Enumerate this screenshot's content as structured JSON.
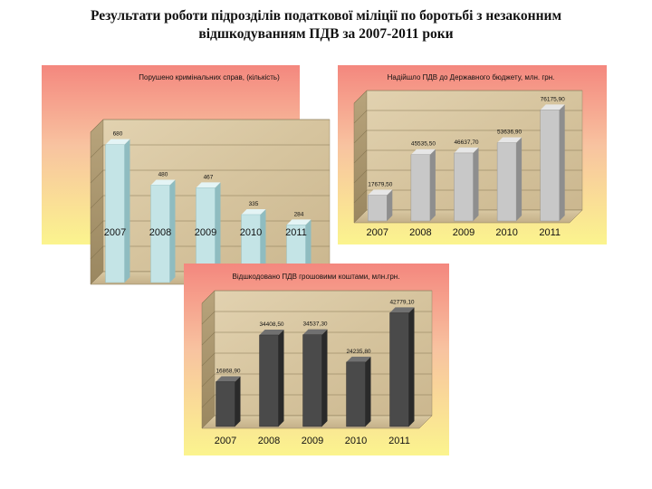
{
  "slide": {
    "title_line1": "Результати роботи підрозділів податкової міліції по боротьбі з незаконним",
    "title_line2": "відшкодуванням ПДВ за 2007-2011 роки"
  },
  "chart_data": [
    {
      "type": "bar",
      "title": "Порушено кримінальних справ, (кількість)",
      "categories": [
        "2007",
        "2008",
        "2009",
        "2010",
        "2011"
      ],
      "values": [
        680,
        480,
        467,
        335,
        284
      ],
      "value_labels": [
        "680",
        "480",
        "467",
        "335",
        "284"
      ],
      "ylim": [
        0,
        750
      ],
      "bar_color": "#c4e4e6",
      "bar_side_color": "#8fbcc0",
      "bar_top_color": "#e4f4f5"
    },
    {
      "type": "bar",
      "title": "Надійшло ПДВ до Державного бюджету, млн. грн.",
      "categories": [
        "2007",
        "2008",
        "2009",
        "2010",
        "2011"
      ],
      "values": [
        17679.5,
        45535.5,
        46637.7,
        53636.9,
        76175.9
      ],
      "value_labels": [
        "17679,50",
        "45535,50",
        "46637,70",
        "53636,90",
        "76175,90"
      ],
      "ylim": [
        0,
        82000
      ],
      "bar_color": "#c8c8c8",
      "bar_side_color": "#8e8e8e",
      "bar_top_color": "#e6e6e6"
    },
    {
      "type": "bar",
      "title": "Відшкодовано ПДВ грошовими коштами, млн.грн.",
      "categories": [
        "2007",
        "2008",
        "2009",
        "2010",
        "2011"
      ],
      "values": [
        16868.9,
        34408.5,
        34537.3,
        24235.8,
        42779.1
      ],
      "value_labels": [
        "16868,90",
        "34408,50",
        "34537,30",
        "24235,80",
        "42779,10"
      ],
      "ylim": [
        0,
        47000
      ],
      "bar_color": "#4a4a4a",
      "bar_side_color": "#2a2a2a",
      "bar_top_color": "#707070"
    }
  ]
}
